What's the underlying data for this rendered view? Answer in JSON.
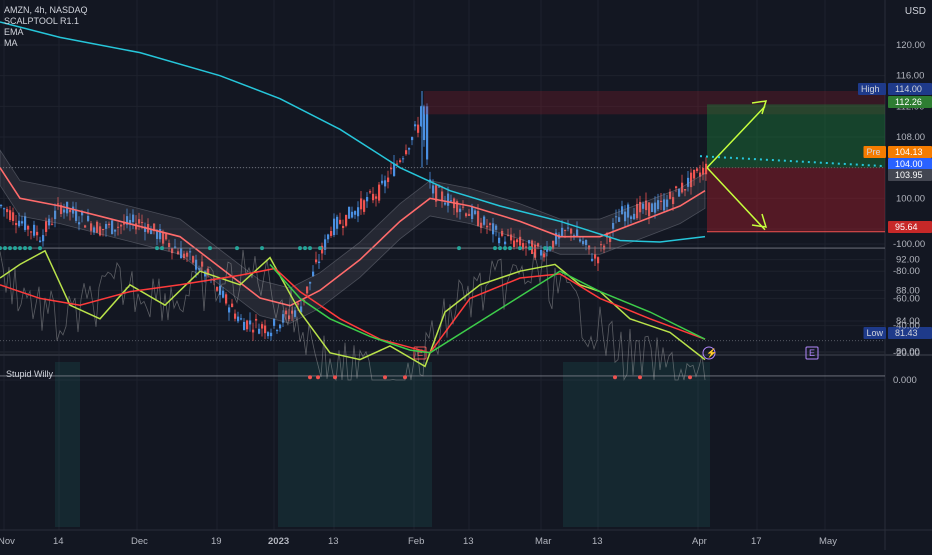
{
  "legend": {
    "symbol": "AMZN, 4h, NASDAQ",
    "ind1": "SCALPTOOL R1.1",
    "ind2": "EMA",
    "ind3": "MA"
  },
  "currency": "USD",
  "oscillator_title": "Stupid Willy",
  "price_badges": {
    "high_label": "High",
    "high_value": "114.00",
    "target_value": "112.26",
    "pre_label": "Pre",
    "pre_value": "104.13",
    "last_value": "104.00",
    "prev_value": "103.95",
    "stop_value": "95.64",
    "low_label": "Low",
    "low_value": "81.43"
  },
  "event_markers": [
    "E",
    "⚡",
    "E"
  ],
  "colors": {
    "background": "#131722",
    "up_candle": "#4a90e2",
    "down_candle": "#ef5350",
    "ema": "#ff6b6b",
    "ma": "#26c6da",
    "osc_fast": "#b9e24a",
    "osc_slow": "#3dcc4a",
    "osc_signal": "#ff3b3b",
    "target_zone": "#1b7a3a",
    "stop_zone": "#a11d2b"
  },
  "chart_data": [
    {
      "type": "candlestick",
      "title": "AMZN, 4h, NASDAQ",
      "x_ticks": [
        "Nov",
        "14",
        "Dec",
        "19",
        "2023",
        "13",
        "Feb",
        "13",
        "Mar",
        "13",
        "Apr",
        "17",
        "May"
      ],
      "y_ticks": [
        80,
        84,
        88,
        92,
        96,
        100,
        104,
        108,
        112,
        116,
        120
      ],
      "ylim": [
        79,
        124
      ],
      "key_levels": {
        "high": 114.0,
        "target": 112.26,
        "pre_market": 104.13,
        "last": 104.0,
        "prev_close": 103.95,
        "stop": 95.64,
        "low": 81.43
      },
      "approx_closes": [
        {
          "x": "Nov",
          "y": 99
        },
        {
          "x": "14",
          "y": 99
        },
        {
          "x": "Dec",
          "y": 96
        },
        {
          "x": "19",
          "y": 85
        },
        {
          "x": "2023",
          "y": 84
        },
        {
          "x": "13",
          "y": 97
        },
        {
          "x": "Feb",
          "y": 103
        },
        {
          "x": "13",
          "y": 99
        },
        {
          "x": "Mar",
          "y": 93
        },
        {
          "x": "13",
          "y": 96
        },
        {
          "x": "Apr",
          "y": 104
        }
      ]
    },
    {
      "type": "line",
      "title": "Stupid Willy",
      "y_ticks": [
        0,
        -20,
        -40,
        -60,
        -80,
        -100
      ],
      "ylim": [
        -103,
        3
      ],
      "y_tick_labels": [
        "0.000",
        "-20.00",
        "-40.00",
        "-60.00",
        "-80.00",
        "-100.00"
      ]
    }
  ]
}
